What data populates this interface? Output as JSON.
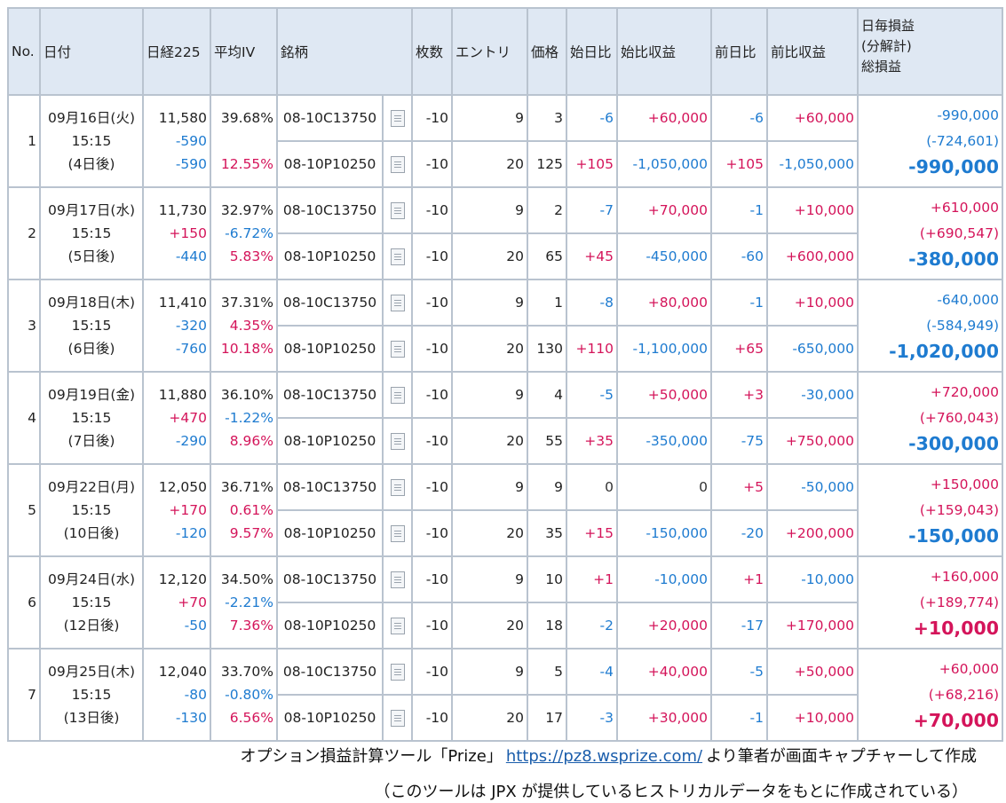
{
  "headers": {
    "no": "No.",
    "date": "日付",
    "nikkei": "日経225",
    "iv": "平均IV",
    "issue": "銘柄",
    "qty": "枚数",
    "entry": "エントリ",
    "price": "価格",
    "from_start": "始日比",
    "start_pnl": "始比収益",
    "from_prev": "前日比",
    "prev_pnl": "前比収益",
    "daily_1": "日毎損益",
    "daily_2": "(分解計)",
    "daily_3": "総損益"
  },
  "rows": [
    {
      "no": "1",
      "date": "09月16日(火)",
      "time": "15:15",
      "days": "(4日後)",
      "nikkei": "11,580",
      "nk_chg1": "-590",
      "nk_chg2": "-590",
      "iv": "39.68%",
      "iv_chg": "",
      "iv2": "12.55%",
      "legs": [
        {
          "name": "08-10C13750",
          "qty": "-10",
          "entry": "9",
          "price": "3",
          "fs": "-6",
          "sp": "+60,000",
          "fp": "-6",
          "pp": "+60,000"
        },
        {
          "name": "08-10P10250",
          "qty": "-10",
          "entry": "20",
          "price": "125",
          "fs": "+105",
          "sp": "-1,050,000",
          "fp": "+105",
          "pp": "-1,050,000"
        }
      ],
      "daily": "-990,000",
      "decomp": "(-724,601)",
      "total": "-990,000"
    },
    {
      "no": "2",
      "date": "09月17日(水)",
      "time": "15:15",
      "days": "(5日後)",
      "nikkei": "11,730",
      "nk_chg1": "+150",
      "nk_chg2": "-440",
      "iv": "32.97%",
      "iv_chg": "-6.72%",
      "iv2": "5.83%",
      "legs": [
        {
          "name": "08-10C13750",
          "qty": "-10",
          "entry": "9",
          "price": "2",
          "fs": "-7",
          "sp": "+70,000",
          "fp": "-1",
          "pp": "+10,000"
        },
        {
          "name": "08-10P10250",
          "qty": "-10",
          "entry": "20",
          "price": "65",
          "fs": "+45",
          "sp": "-450,000",
          "fp": "-60",
          "pp": "+600,000"
        }
      ],
      "daily": "+610,000",
      "decomp": "(+690,547)",
      "total": "-380,000"
    },
    {
      "no": "3",
      "date": "09月18日(木)",
      "time": "15:15",
      "days": "(6日後)",
      "nikkei": "11,410",
      "nk_chg1": "-320",
      "nk_chg2": "-760",
      "iv": "37.31%",
      "iv_chg": "4.35%",
      "iv2": "10.18%",
      "legs": [
        {
          "name": "08-10C13750",
          "qty": "-10",
          "entry": "9",
          "price": "1",
          "fs": "-8",
          "sp": "+80,000",
          "fp": "-1",
          "pp": "+10,000"
        },
        {
          "name": "08-10P10250",
          "qty": "-10",
          "entry": "20",
          "price": "130",
          "fs": "+110",
          "sp": "-1,100,000",
          "fp": "+65",
          "pp": "-650,000"
        }
      ],
      "daily": "-640,000",
      "decomp": "(-584,949)",
      "total": "-1,020,000"
    },
    {
      "no": "4",
      "date": "09月19日(金)",
      "time": "15:15",
      "days": "(7日後)",
      "nikkei": "11,880",
      "nk_chg1": "+470",
      "nk_chg2": "-290",
      "iv": "36.10%",
      "iv_chg": "-1.22%",
      "iv2": "8.96%",
      "legs": [
        {
          "name": "08-10C13750",
          "qty": "-10",
          "entry": "9",
          "price": "4",
          "fs": "-5",
          "sp": "+50,000",
          "fp": "+3",
          "pp": "-30,000"
        },
        {
          "name": "08-10P10250",
          "qty": "-10",
          "entry": "20",
          "price": "55",
          "fs": "+35",
          "sp": "-350,000",
          "fp": "-75",
          "pp": "+750,000"
        }
      ],
      "daily": "+720,000",
      "decomp": "(+760,043)",
      "total": "-300,000"
    },
    {
      "no": "5",
      "date": "09月22日(月)",
      "time": "15:15",
      "days": "(10日後)",
      "nikkei": "12,050",
      "nk_chg1": "+170",
      "nk_chg2": "-120",
      "iv": "36.71%",
      "iv_chg": "0.61%",
      "iv2": "9.57%",
      "legs": [
        {
          "name": "08-10C13750",
          "qty": "-10",
          "entry": "9",
          "price": "9",
          "fs": "0",
          "sp": "0",
          "fp": "+5",
          "pp": "-50,000"
        },
        {
          "name": "08-10P10250",
          "qty": "-10",
          "entry": "20",
          "price": "35",
          "fs": "+15",
          "sp": "-150,000",
          "fp": "-20",
          "pp": "+200,000"
        }
      ],
      "daily": "+150,000",
      "decomp": "(+159,043)",
      "total": "-150,000"
    },
    {
      "no": "6",
      "date": "09月24日(水)",
      "time": "15:15",
      "days": "(12日後)",
      "nikkei": "12,120",
      "nk_chg1": "+70",
      "nk_chg2": "-50",
      "iv": "34.50%",
      "iv_chg": "-2.21%",
      "iv2": "7.36%",
      "legs": [
        {
          "name": "08-10C13750",
          "qty": "-10",
          "entry": "9",
          "price": "10",
          "fs": "+1",
          "sp": "-10,000",
          "fp": "+1",
          "pp": "-10,000"
        },
        {
          "name": "08-10P10250",
          "qty": "-10",
          "entry": "20",
          "price": "18",
          "fs": "-2",
          "sp": "+20,000",
          "fp": "-17",
          "pp": "+170,000"
        }
      ],
      "daily": "+160,000",
      "decomp": "(+189,774)",
      "total": "+10,000"
    },
    {
      "no": "7",
      "date": "09月25日(木)",
      "time": "15:15",
      "days": "(13日後)",
      "nikkei": "12,040",
      "nk_chg1": "-80",
      "nk_chg2": "-130",
      "iv": "33.70%",
      "iv_chg": "-0.80%",
      "iv2": "6.56%",
      "legs": [
        {
          "name": "08-10C13750",
          "qty": "-10",
          "entry": "9",
          "price": "5",
          "fs": "-4",
          "sp": "+40,000",
          "fp": "-5",
          "pp": "+50,000"
        },
        {
          "name": "08-10P10250",
          "qty": "-10",
          "entry": "20",
          "price": "17",
          "fs": "-3",
          "sp": "+30,000",
          "fp": "-1",
          "pp": "+10,000"
        }
      ],
      "daily": "+60,000",
      "decomp": "(+68,216)",
      "total": "+70,000"
    }
  ],
  "caption": {
    "line1_pre": "オプション損益計算ツール「Prize」",
    "link": "https://pz8.wsprize.com/",
    "line1_post": "より筆者が画面キャプチャーして作成",
    "line2": "（このツールは JPX が提供しているヒストリカルデータをもとに作成されている）"
  },
  "colors": {
    "positive": "#d4145a",
    "negative": "#1e7bd0",
    "header_bg": "#dfe8f3",
    "grid": "#b9c3cf",
    "link": "#1a5dab"
  }
}
